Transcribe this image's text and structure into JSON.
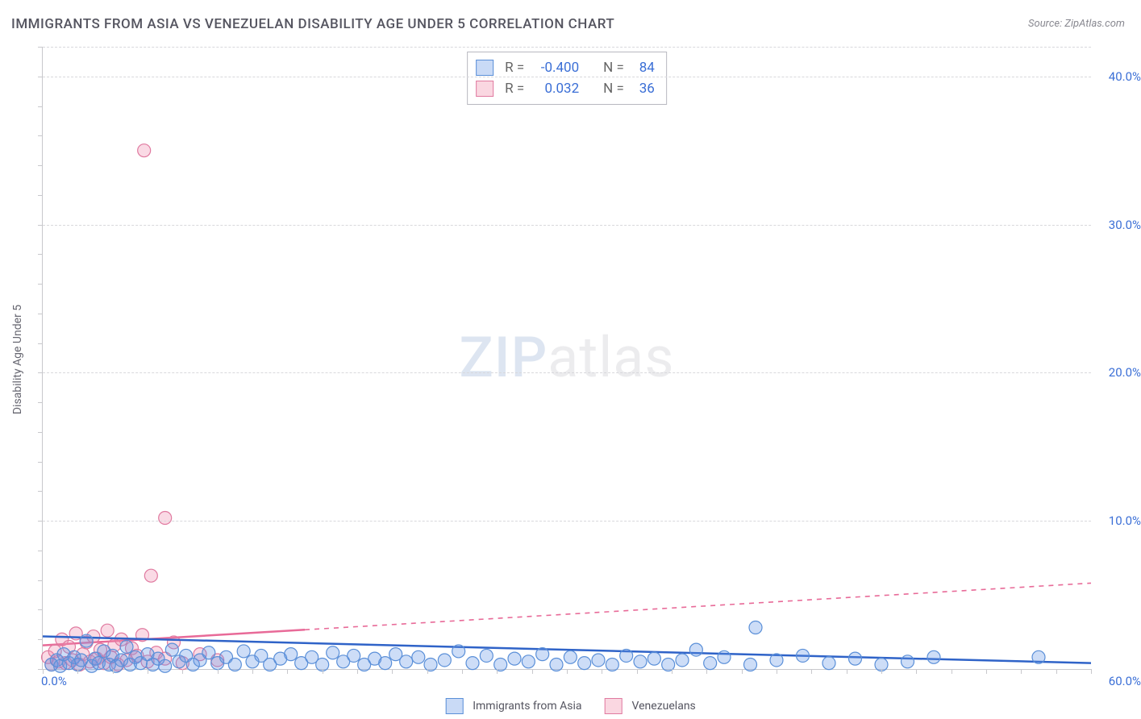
{
  "title": "IMMIGRANTS FROM ASIA VS VENEZUELAN DISABILITY AGE UNDER 5 CORRELATION CHART",
  "source": "Source: ZipAtlas.com",
  "ylabel": "Disability Age Under 5",
  "watermark_zip": "ZIP",
  "watermark_rest": "atlas",
  "xlim": [
    0,
    60
  ],
  "ylim": [
    0,
    42
  ],
  "xtick_min_label": "0.0%",
  "xtick_max_label": "60.0%",
  "yticks": [
    {
      "v": 10,
      "label": "10.0%"
    },
    {
      "v": 20,
      "label": "20.0%"
    },
    {
      "v": 30,
      "label": "30.0%"
    },
    {
      "v": 40,
      "label": "40.0%"
    }
  ],
  "xtick_minor_step": 2,
  "ytick_minor_step": 2,
  "stats": [
    {
      "color": "blue",
      "r_label": "R =",
      "r": "-0.400",
      "n_label": "N =",
      "n": "84"
    },
    {
      "color": "pink",
      "r_label": "R =",
      "r": "0.032",
      "n_label": "N =",
      "n": "36"
    }
  ],
  "legend": [
    {
      "color": "blue",
      "label": "Immigrants from Asia"
    },
    {
      "color": "pink",
      "label": "Venezuelans"
    }
  ],
  "series": {
    "blue": {
      "point_fill": "rgba(100,150,230,0.32)",
      "point_stroke": "#5a8fd8",
      "line_color": "#2f63c8",
      "line_dash_after_x": 60,
      "trend_y0": 2.2,
      "trend_y60": 0.4,
      "r": 8,
      "points": [
        [
          0.5,
          0.3
        ],
        [
          0.8,
          0.6
        ],
        [
          1.0,
          0.2
        ],
        [
          1.2,
          1.0
        ],
        [
          1.5,
          0.4
        ],
        [
          1.8,
          0.8
        ],
        [
          2.0,
          0.3
        ],
        [
          2.2,
          0.6
        ],
        [
          2.5,
          1.9
        ],
        [
          2.8,
          0.2
        ],
        [
          3.0,
          0.7
        ],
        [
          3.2,
          0.4
        ],
        [
          3.5,
          1.2
        ],
        [
          3.8,
          0.3
        ],
        [
          4.0,
          0.9
        ],
        [
          4.2,
          0.2
        ],
        [
          4.5,
          0.6
        ],
        [
          4.8,
          1.5
        ],
        [
          5.0,
          0.3
        ],
        [
          5.3,
          0.8
        ],
        [
          5.6,
          0.4
        ],
        [
          6.0,
          1.0
        ],
        [
          6.3,
          0.3
        ],
        [
          6.6,
          0.7
        ],
        [
          7.0,
          0.2
        ],
        [
          7.4,
          1.3
        ],
        [
          7.8,
          0.5
        ],
        [
          8.2,
          0.9
        ],
        [
          8.6,
          0.3
        ],
        [
          9.0,
          0.6
        ],
        [
          9.5,
          1.1
        ],
        [
          10.0,
          0.4
        ],
        [
          10.5,
          0.8
        ],
        [
          11.0,
          0.3
        ],
        [
          11.5,
          1.2
        ],
        [
          12.0,
          0.5
        ],
        [
          12.5,
          0.9
        ],
        [
          13.0,
          0.3
        ],
        [
          13.6,
          0.7
        ],
        [
          14.2,
          1.0
        ],
        [
          14.8,
          0.4
        ],
        [
          15.4,
          0.8
        ],
        [
          16.0,
          0.3
        ],
        [
          16.6,
          1.1
        ],
        [
          17.2,
          0.5
        ],
        [
          17.8,
          0.9
        ],
        [
          18.4,
          0.3
        ],
        [
          19.0,
          0.7
        ],
        [
          19.6,
          0.4
        ],
        [
          20.2,
          1.0
        ],
        [
          20.8,
          0.5
        ],
        [
          21.5,
          0.8
        ],
        [
          22.2,
          0.3
        ],
        [
          23.0,
          0.6
        ],
        [
          23.8,
          1.2
        ],
        [
          24.6,
          0.4
        ],
        [
          25.4,
          0.9
        ],
        [
          26.2,
          0.3
        ],
        [
          27.0,
          0.7
        ],
        [
          27.8,
          0.5
        ],
        [
          28.6,
          1.0
        ],
        [
          29.4,
          0.3
        ],
        [
          30.2,
          0.8
        ],
        [
          31.0,
          0.4
        ],
        [
          31.8,
          0.6
        ],
        [
          32.6,
          0.3
        ],
        [
          33.4,
          0.9
        ],
        [
          34.2,
          0.5
        ],
        [
          35.0,
          0.7
        ],
        [
          35.8,
          0.3
        ],
        [
          36.6,
          0.6
        ],
        [
          37.4,
          1.3
        ],
        [
          38.2,
          0.4
        ],
        [
          39.0,
          0.8
        ],
        [
          40.5,
          0.3
        ],
        [
          40.8,
          2.8
        ],
        [
          42.0,
          0.6
        ],
        [
          43.5,
          0.9
        ],
        [
          45.0,
          0.4
        ],
        [
          46.5,
          0.7
        ],
        [
          48.0,
          0.3
        ],
        [
          49.5,
          0.5
        ],
        [
          51.0,
          0.8
        ],
        [
          57.0,
          0.8
        ]
      ]
    },
    "pink": {
      "point_fill": "rgba(240,140,175,0.32)",
      "point_stroke": "#e07aa0",
      "line_color": "#e86a98",
      "line_dash_after_x": 15,
      "trend_y0": 1.6,
      "trend_y60": 5.8,
      "r": 8,
      "points": [
        [
          0.3,
          0.8
        ],
        [
          0.5,
          0.3
        ],
        [
          0.7,
          1.2
        ],
        [
          0.9,
          0.5
        ],
        [
          1.1,
          2.0
        ],
        [
          1.3,
          0.4
        ],
        [
          1.5,
          1.5
        ],
        [
          1.7,
          0.6
        ],
        [
          1.9,
          2.4
        ],
        [
          2.1,
          0.3
        ],
        [
          2.3,
          1.0
        ],
        [
          2.5,
          1.8
        ],
        [
          2.7,
          0.5
        ],
        [
          2.9,
          2.2
        ],
        [
          3.1,
          0.7
        ],
        [
          3.3,
          1.3
        ],
        [
          3.5,
          0.4
        ],
        [
          3.7,
          2.6
        ],
        [
          3.9,
          0.8
        ],
        [
          4.1,
          1.6
        ],
        [
          4.3,
          0.3
        ],
        [
          4.5,
          2.0
        ],
        [
          4.8,
          0.6
        ],
        [
          5.1,
          1.4
        ],
        [
          5.4,
          0.9
        ],
        [
          5.7,
          2.3
        ],
        [
          6.0,
          0.5
        ],
        [
          6.5,
          1.1
        ],
        [
          7.0,
          0.7
        ],
        [
          7.5,
          1.8
        ],
        [
          8.0,
          0.4
        ],
        [
          9.0,
          1.0
        ],
        [
          10.0,
          0.6
        ],
        [
          6.2,
          6.3
        ],
        [
          7.0,
          10.2
        ],
        [
          5.8,
          35.0
        ]
      ]
    }
  }
}
